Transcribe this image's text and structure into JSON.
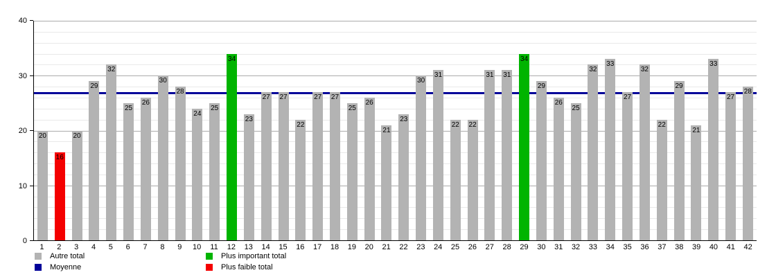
{
  "chart_data": {
    "type": "bar",
    "categories": [
      "1",
      "2",
      "3",
      "4",
      "5",
      "6",
      "7",
      "8",
      "9",
      "10",
      "11",
      "12",
      "13",
      "14",
      "15",
      "16",
      "17",
      "18",
      "19",
      "20",
      "21",
      "22",
      "23",
      "24",
      "25",
      "26",
      "27",
      "28",
      "29",
      "30",
      "31",
      "32",
      "33",
      "34",
      "35",
      "36",
      "37",
      "38",
      "39",
      "40",
      "41",
      "42"
    ],
    "values": [
      20,
      16,
      20,
      29,
      32,
      25,
      26,
      30,
      28,
      24,
      25,
      34,
      23,
      27,
      27,
      22,
      27,
      27,
      25,
      26,
      21,
      23,
      30,
      31,
      22,
      22,
      31,
      31,
      34,
      29,
      26,
      25,
      32,
      33,
      27,
      32,
      22,
      29,
      21,
      33,
      27,
      28
    ],
    "highlight_important": [
      12,
      29
    ],
    "highlight_faible": [
      2
    ],
    "average": 26.71,
    "title": "",
    "xlabel": "",
    "ylabel": "",
    "ylim": [
      0,
      40
    ],
    "y_ticks": [
      "0",
      "10",
      "20",
      "30",
      "40"
    ],
    "minor_grid_step": 2,
    "grid": true,
    "legend_position": "bottom",
    "colors": {
      "autre": "#b3b3b3",
      "important": "#00b400",
      "faible": "#f40000",
      "moyenne": "#000099"
    },
    "legend": [
      {
        "label": "Autre total",
        "color_key": "autre",
        "column": 1
      },
      {
        "label": "Moyenne",
        "color_key": "moyenne",
        "column": 1
      },
      {
        "label": "Plus important total",
        "color_key": "important",
        "column": 2
      },
      {
        "label": "Plus faible total",
        "color_key": "faible",
        "column": 2
      }
    ]
  }
}
